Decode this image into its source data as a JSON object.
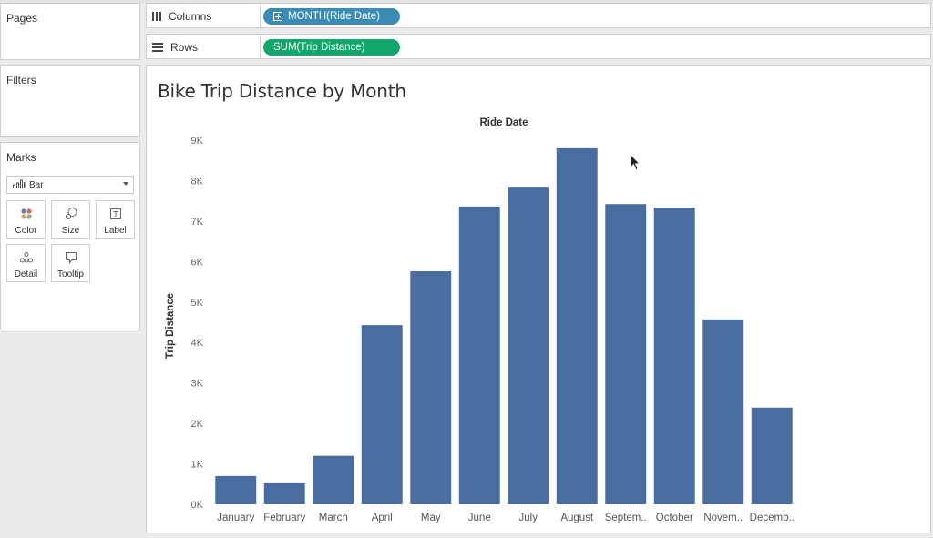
{
  "shelves": {
    "columns_label": "Columns",
    "columns_pill": "MONTH(Ride Date)",
    "rows_label": "Rows",
    "rows_pill": "SUM(Trip Distance)"
  },
  "panels": {
    "pages": "Pages",
    "filters": "Filters",
    "marks": "Marks",
    "mark_type": "Bar",
    "mark_buttons": [
      "Color",
      "Size",
      "Label",
      "Detail",
      "Tooltip"
    ]
  },
  "icons": {
    "columns": "columns-icon",
    "rows": "rows-icon",
    "mark_type": "bar-chart-icon",
    "color": "color-dots-icon",
    "size": "size-icon",
    "label": "label-icon",
    "detail": "detail-icon",
    "tooltip": "tooltip-icon",
    "cursor": "mouse-pointer-icon"
  },
  "colors": {
    "bar": "#4a6da0",
    "columns_pill": "#3a8cb5",
    "rows_pill": "#11a76b"
  },
  "view": {
    "title": "Bike Trip Distance by Month"
  },
  "chart_data": {
    "type": "bar",
    "title": "Bike Trip Distance by Month",
    "xlabel": "Ride Date",
    "ylabel": "Trip Distance",
    "categories": [
      "January",
      "February",
      "March",
      "April",
      "May",
      "June",
      "July",
      "August",
      "Septem..",
      "October",
      "Novem..",
      "Decemb.."
    ],
    "values": [
      700,
      520,
      1200,
      4430,
      5760,
      7360,
      7850,
      8800,
      7420,
      7330,
      4570,
      2390
    ],
    "yticks": [
      "0K",
      "1K",
      "2K",
      "3K",
      "4K",
      "5K",
      "6K",
      "7K",
      "8K",
      "9K"
    ],
    "ylim": [
      0,
      9000
    ],
    "grid": false,
    "legend": "none"
  }
}
